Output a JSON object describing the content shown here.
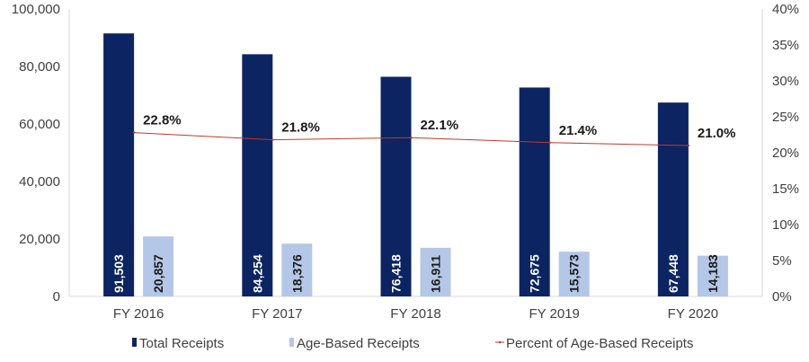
{
  "chart_data": {
    "type": "bar",
    "categories": [
      "FY 2016",
      "FY 2017",
      "FY 2018",
      "FY 2019",
      "FY 2020"
    ],
    "series": [
      {
        "name": "Total Receipts",
        "type": "bar",
        "axis": "left",
        "color": "#0c2461",
        "values": [
          91503,
          84254,
          76418,
          72675,
          67448
        ],
        "labels": [
          "91,503",
          "84,254",
          "76,418",
          "72,675",
          "67,448"
        ]
      },
      {
        "name": "Age-Based Receipts",
        "type": "bar",
        "axis": "left",
        "color": "#b4c7e7",
        "values": [
          20857,
          18376,
          16911,
          15573,
          14183
        ],
        "labels": [
          "20,857",
          "18,376",
          "16,911",
          "15,573",
          "14,183"
        ]
      },
      {
        "name": "Percent of Age-Based Receipts",
        "type": "line",
        "axis": "right",
        "color": "#c0392b",
        "values": [
          22.8,
          21.8,
          22.1,
          21.4,
          21.0
        ],
        "labels": [
          "22.8%",
          "21.8%",
          "22.1%",
          "21.4%",
          "21.0%"
        ]
      }
    ],
    "ylim": [
      0,
      100000
    ],
    "y_ticks": [
      "0",
      "20,000",
      "40,000",
      "60,000",
      "80,000",
      "100,000"
    ],
    "y2lim": [
      0,
      40
    ],
    "y2_ticks": [
      "0%",
      "5%",
      "10%",
      "15%",
      "20%",
      "25%",
      "30%",
      "35%",
      "40%"
    ],
    "grid": false,
    "legend_position": "bottom"
  }
}
